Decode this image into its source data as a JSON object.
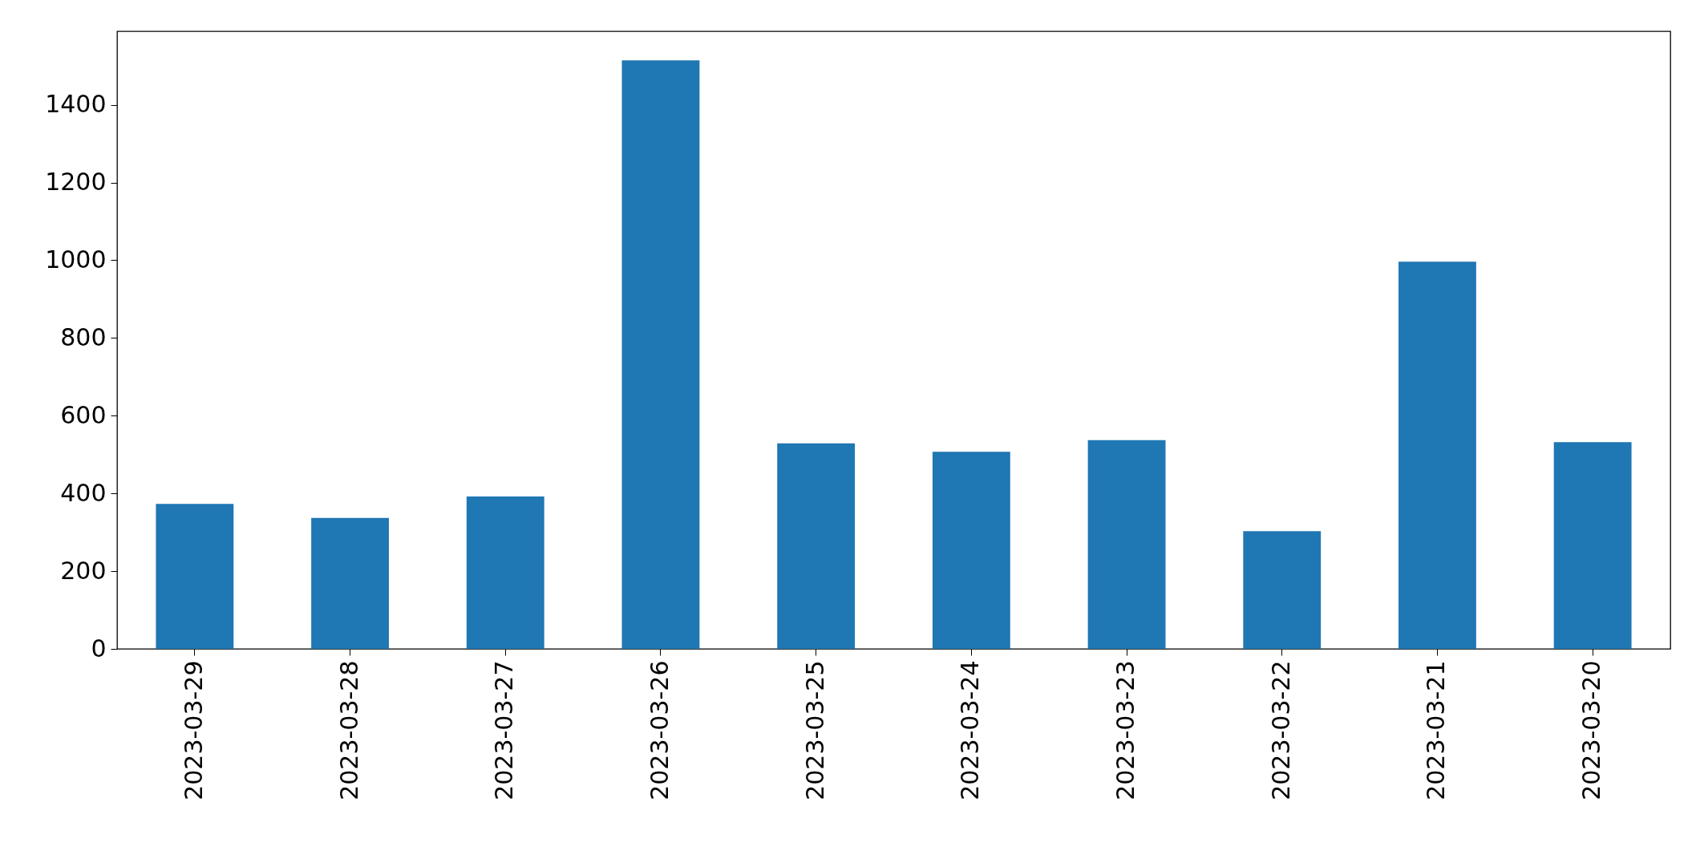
{
  "chart_data": {
    "type": "bar",
    "categories": [
      "2023-03-29",
      "2023-03-28",
      "2023-03-27",
      "2023-03-26",
      "2023-03-25",
      "2023-03-24",
      "2023-03-23",
      "2023-03-22",
      "2023-03-21",
      "2023-03-20"
    ],
    "values": [
      373,
      337,
      392,
      1514,
      529,
      507,
      537,
      303,
      996,
      532
    ],
    "color": "#1f77b4",
    "ylim": [
      0,
      1589
    ],
    "yticks": [
      0,
      200,
      400,
      600,
      800,
      1000,
      1200,
      1400
    ],
    "grid": false
  }
}
